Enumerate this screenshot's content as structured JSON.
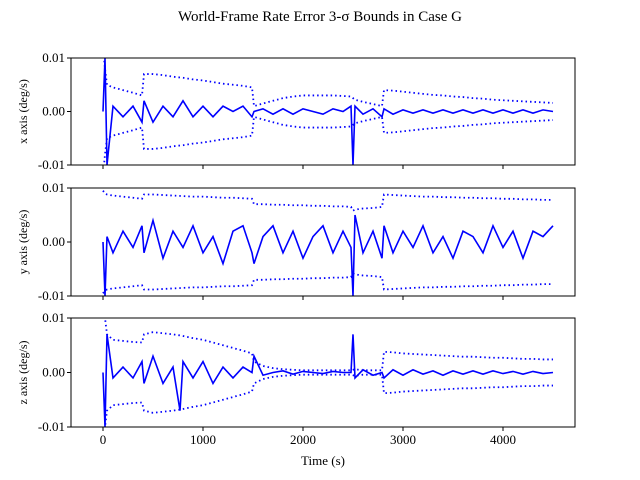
{
  "title": "World-Frame Rate Error 3-σ Bounds in Case G",
  "chart_data": [
    {
      "type": "line",
      "ylabel": "x axis (deg/s)",
      "x": [
        0,
        20,
        40,
        100,
        200,
        300,
        390,
        410,
        500,
        600,
        700,
        800,
        900,
        1000,
        1100,
        1200,
        1300,
        1400,
        1490,
        1510,
        1600,
        1700,
        1800,
        1900,
        2000,
        2100,
        2200,
        2300,
        2400,
        2480,
        2500,
        2520,
        2600,
        2700,
        2790,
        2810,
        2900,
        3000,
        3100,
        3200,
        3300,
        3400,
        3500,
        3600,
        3700,
        3800,
        3900,
        4000,
        4100,
        4200,
        4300,
        4400,
        4500
      ],
      "xlim": [
        -320,
        4720
      ],
      "xticks": [
        0,
        1000,
        2000,
        3000,
        4000
      ],
      "ylim": [
        -0.01,
        0.01
      ],
      "yticks": [
        -0.01,
        {
          "value": 0,
          "label": "0.00"
        },
        0.01
      ],
      "series": [
        {
          "color": "#0000ff",
          "linestyle": "solid",
          "values": [
            0,
            0.01,
            -0.01,
            0.001,
            -0.001,
            0.001,
            -0.002,
            0.002,
            -0.002,
            0.001,
            -0.001,
            0.002,
            -0.001,
            0.001,
            -0.001,
            0.001,
            0,
            0.001,
            -0.001,
            0,
            0.0005,
            -0.0005,
            0.0005,
            -0.0005,
            0.0005,
            0,
            -0.0005,
            0.0005,
            0,
            0.001,
            -0.01,
            0.001,
            -0.0005,
            0.0005,
            -0.001,
            0.0005,
            -0.0005,
            0.0003,
            -0.0003,
            0.0003,
            -0.0003,
            0.0003,
            -0.0003,
            0.0003,
            -0.0003,
            0.0003,
            -0.0003,
            0.0003,
            -0.0003,
            0.0003,
            -0.0003,
            0.0003,
            0
          ]
        },
        {
          "color": "#0000ff",
          "linestyle": "dotted",
          "values": [
            0.012,
            0.008,
            0.005,
            0.0045,
            0.004,
            0.0035,
            0.003,
            0.007,
            0.007,
            0.0068,
            0.0065,
            0.0063,
            0.006,
            0.0058,
            0.0055,
            0.0052,
            0.005,
            0.0048,
            0.0045,
            0.001,
            0.0015,
            0.002,
            0.0025,
            0.0028,
            0.003,
            0.003,
            0.003,
            0.003,
            0.0029,
            0.0028,
            0.0025,
            0.0022,
            0.0018,
            0.0014,
            0.001,
            0.004,
            0.0039,
            0.0037,
            0.0035,
            0.0033,
            0.0031,
            0.003,
            0.0028,
            0.0027,
            0.0025,
            0.0024,
            0.0022,
            0.0021,
            0.002,
            0.0019,
            0.0018,
            0.0017,
            0.0016
          ]
        },
        {
          "color": "#0000ff",
          "linestyle": "dotted",
          "values": [
            -0.012,
            -0.008,
            -0.005,
            -0.0045,
            -0.004,
            -0.0035,
            -0.003,
            -0.007,
            -0.007,
            -0.0068,
            -0.0065,
            -0.0063,
            -0.006,
            -0.0058,
            -0.0055,
            -0.0052,
            -0.005,
            -0.0048,
            -0.0045,
            -0.001,
            -0.0015,
            -0.002,
            -0.0025,
            -0.0028,
            -0.003,
            -0.003,
            -0.003,
            -0.003,
            -0.0029,
            -0.0028,
            -0.0025,
            -0.0022,
            -0.0018,
            -0.0014,
            -0.001,
            -0.004,
            -0.0039,
            -0.0037,
            -0.0035,
            -0.0033,
            -0.0031,
            -0.003,
            -0.0028,
            -0.0027,
            -0.0025,
            -0.0024,
            -0.0022,
            -0.0021,
            -0.002,
            -0.0019,
            -0.0018,
            -0.0017,
            -0.0016
          ]
        }
      ]
    },
    {
      "type": "line",
      "ylabel": "y axis (deg/s)",
      "x": [
        0,
        20,
        40,
        100,
        200,
        300,
        390,
        410,
        500,
        600,
        700,
        800,
        900,
        1000,
        1100,
        1200,
        1300,
        1400,
        1490,
        1510,
        1600,
        1700,
        1800,
        1900,
        2000,
        2100,
        2200,
        2300,
        2400,
        2480,
        2500,
        2520,
        2600,
        2700,
        2790,
        2810,
        2900,
        3000,
        3100,
        3200,
        3300,
        3400,
        3500,
        3600,
        3700,
        3800,
        3900,
        4000,
        4100,
        4200,
        4300,
        4400,
        4500
      ],
      "xlim": [
        -320,
        4720
      ],
      "xticks": [
        0,
        1000,
        2000,
        3000,
        4000
      ],
      "ylim": [
        -0.01,
        0.01
      ],
      "yticks": [
        -0.01,
        {
          "value": 0,
          "label": "0.00"
        },
        0.01
      ],
      "series": [
        {
          "color": "#0000ff",
          "linestyle": "solid",
          "values": [
            0,
            -0.01,
            0.001,
            -0.002,
            0.002,
            -0.001,
            0.003,
            -0.002,
            0.004,
            -0.003,
            0.002,
            -0.001,
            0.003,
            -0.002,
            0.001,
            -0.004,
            0.002,
            0.003,
            -0.002,
            -0.004,
            0.001,
            0.003,
            -0.002,
            0.002,
            -0.003,
            0.001,
            0.003,
            -0.002,
            0.002,
            -0.001,
            -0.01,
            0.005,
            -0.002,
            0.002,
            -0.003,
            0.003,
            -0.002,
            0.002,
            -0.001,
            0.003,
            -0.002,
            0.001,
            -0.003,
            0.002,
            0.001,
            -0.002,
            0.003,
            -0.001,
            0.002,
            -0.003,
            0.002,
            0.001,
            0.003
          ]
        },
        {
          "color": "#0000ff",
          "linestyle": "dotted",
          "values": [
            0.0095,
            0.009,
            0.0088,
            0.0086,
            0.0084,
            0.0082,
            0.008,
            0.0088,
            0.0088,
            0.0087,
            0.0086,
            0.0085,
            0.0084,
            0.0084,
            0.0083,
            0.0082,
            0.0082,
            0.0081,
            0.008,
            0.007,
            0.007,
            0.0069,
            0.0069,
            0.0068,
            0.0068,
            0.0067,
            0.0067,
            0.0066,
            0.0066,
            0.0065,
            0.0058,
            0.006,
            0.0062,
            0.0063,
            0.0065,
            0.0088,
            0.0087,
            0.0086,
            0.0085,
            0.0084,
            0.0084,
            0.0083,
            0.0083,
            0.0082,
            0.0082,
            0.0081,
            0.0081,
            0.008,
            0.008,
            0.0079,
            0.0079,
            0.0078,
            0.0078
          ]
        },
        {
          "color": "#0000ff",
          "linestyle": "dotted",
          "values": [
            -0.0095,
            -0.009,
            -0.0088,
            -0.0086,
            -0.0084,
            -0.0082,
            -0.008,
            -0.0088,
            -0.0088,
            -0.0087,
            -0.0086,
            -0.0085,
            -0.0084,
            -0.0084,
            -0.0083,
            -0.0082,
            -0.0082,
            -0.0081,
            -0.008,
            -0.007,
            -0.007,
            -0.0069,
            -0.0069,
            -0.0068,
            -0.0068,
            -0.0067,
            -0.0067,
            -0.0066,
            -0.0066,
            -0.0065,
            -0.0058,
            -0.006,
            -0.0062,
            -0.0063,
            -0.0065,
            -0.0088,
            -0.0087,
            -0.0086,
            -0.0085,
            -0.0084,
            -0.0084,
            -0.0083,
            -0.0083,
            -0.0082,
            -0.0082,
            -0.0081,
            -0.0081,
            -0.008,
            -0.008,
            -0.0079,
            -0.0079,
            -0.0078,
            -0.0078
          ]
        }
      ]
    },
    {
      "type": "line",
      "ylabel": "z axis (deg/s)",
      "xlabel": "Time (s)",
      "x": [
        0,
        20,
        40,
        100,
        200,
        300,
        390,
        410,
        500,
        600,
        700,
        770,
        800,
        900,
        1000,
        1100,
        1200,
        1300,
        1400,
        1490,
        1510,
        1600,
        1700,
        1800,
        1900,
        2000,
        2100,
        2200,
        2300,
        2400,
        2480,
        2500,
        2520,
        2600,
        2700,
        2790,
        2810,
        2900,
        3000,
        3100,
        3200,
        3300,
        3400,
        3500,
        3600,
        3700,
        3800,
        3900,
        4000,
        4100,
        4200,
        4300,
        4400,
        4500
      ],
      "xlim": [
        -320,
        4720
      ],
      "xticks": [
        0,
        1000,
        2000,
        3000,
        4000
      ],
      "ylim": [
        -0.01,
        0.01
      ],
      "yticks": [
        -0.01,
        {
          "value": 0,
          "label": "0.00"
        },
        0.01
      ],
      "series": [
        {
          "color": "#0000ff",
          "linestyle": "solid",
          "values": [
            0,
            -0.01,
            0.007,
            -0.001,
            0.001,
            -0.001,
            0.002,
            -0.002,
            0.003,
            -0.002,
            0.001,
            -0.007,
            0.002,
            -0.001,
            0.002,
            -0.002,
            0.001,
            -0.001,
            0.001,
            0,
            0.003,
            -0.0005,
            0,
            0.0003,
            -0.0003,
            0.0002,
            0,
            -0.0002,
            0.0002,
            0,
            0,
            0.007,
            -0.001,
            0.0005,
            -0.0005,
            0,
            -0.001,
            0.0005,
            -0.0005,
            0.0005,
            -0.0003,
            0.0003,
            -0.0005,
            0.0003,
            -0.0003,
            0.0003,
            -0.0003,
            0.0003,
            -0.0002,
            0.0002,
            -0.0003,
            0.0002,
            -0.0002,
            0
          ]
        },
        {
          "color": "#0000ff",
          "linestyle": "dotted",
          "values": [
            0.012,
            0.01,
            0.007,
            0.006,
            0.0058,
            0.0056,
            0.0055,
            0.007,
            0.0074,
            0.0072,
            0.007,
            0.0068,
            0.0067,
            0.0063,
            0.006,
            0.0055,
            0.005,
            0.0045,
            0.004,
            0.0035,
            0.002,
            0.0012,
            0.0008,
            0.0006,
            0.0005,
            0.0004,
            0.0004,
            0.0004,
            0.0004,
            0.0004,
            0.0004,
            0.0005,
            0.0006,
            0.0004,
            0.0004,
            0.0004,
            0.0038,
            0.0037,
            0.0035,
            0.0034,
            0.0033,
            0.0032,
            0.0031,
            0.003,
            0.0029,
            0.0029,
            0.0028,
            0.0027,
            0.0027,
            0.0026,
            0.0025,
            0.0025,
            0.0024,
            0.0024
          ]
        },
        {
          "color": "#0000ff",
          "linestyle": "dotted",
          "values": [
            -0.012,
            -0.01,
            -0.007,
            -0.006,
            -0.0058,
            -0.0056,
            -0.0055,
            -0.007,
            -0.0074,
            -0.0072,
            -0.007,
            -0.0068,
            -0.0067,
            -0.0063,
            -0.006,
            -0.0055,
            -0.005,
            -0.0045,
            -0.004,
            -0.0035,
            -0.002,
            -0.0012,
            -0.0008,
            -0.0006,
            -0.0005,
            -0.0004,
            -0.0004,
            -0.0004,
            -0.0004,
            -0.0004,
            -0.0004,
            -0.0005,
            -0.0006,
            -0.0004,
            -0.0004,
            -0.0004,
            -0.0038,
            -0.0037,
            -0.0035,
            -0.0034,
            -0.0033,
            -0.0032,
            -0.0031,
            -0.003,
            -0.0029,
            -0.0029,
            -0.0028,
            -0.0027,
            -0.0027,
            -0.0026,
            -0.0025,
            -0.0025,
            -0.0024,
            -0.0024
          ]
        }
      ]
    }
  ]
}
